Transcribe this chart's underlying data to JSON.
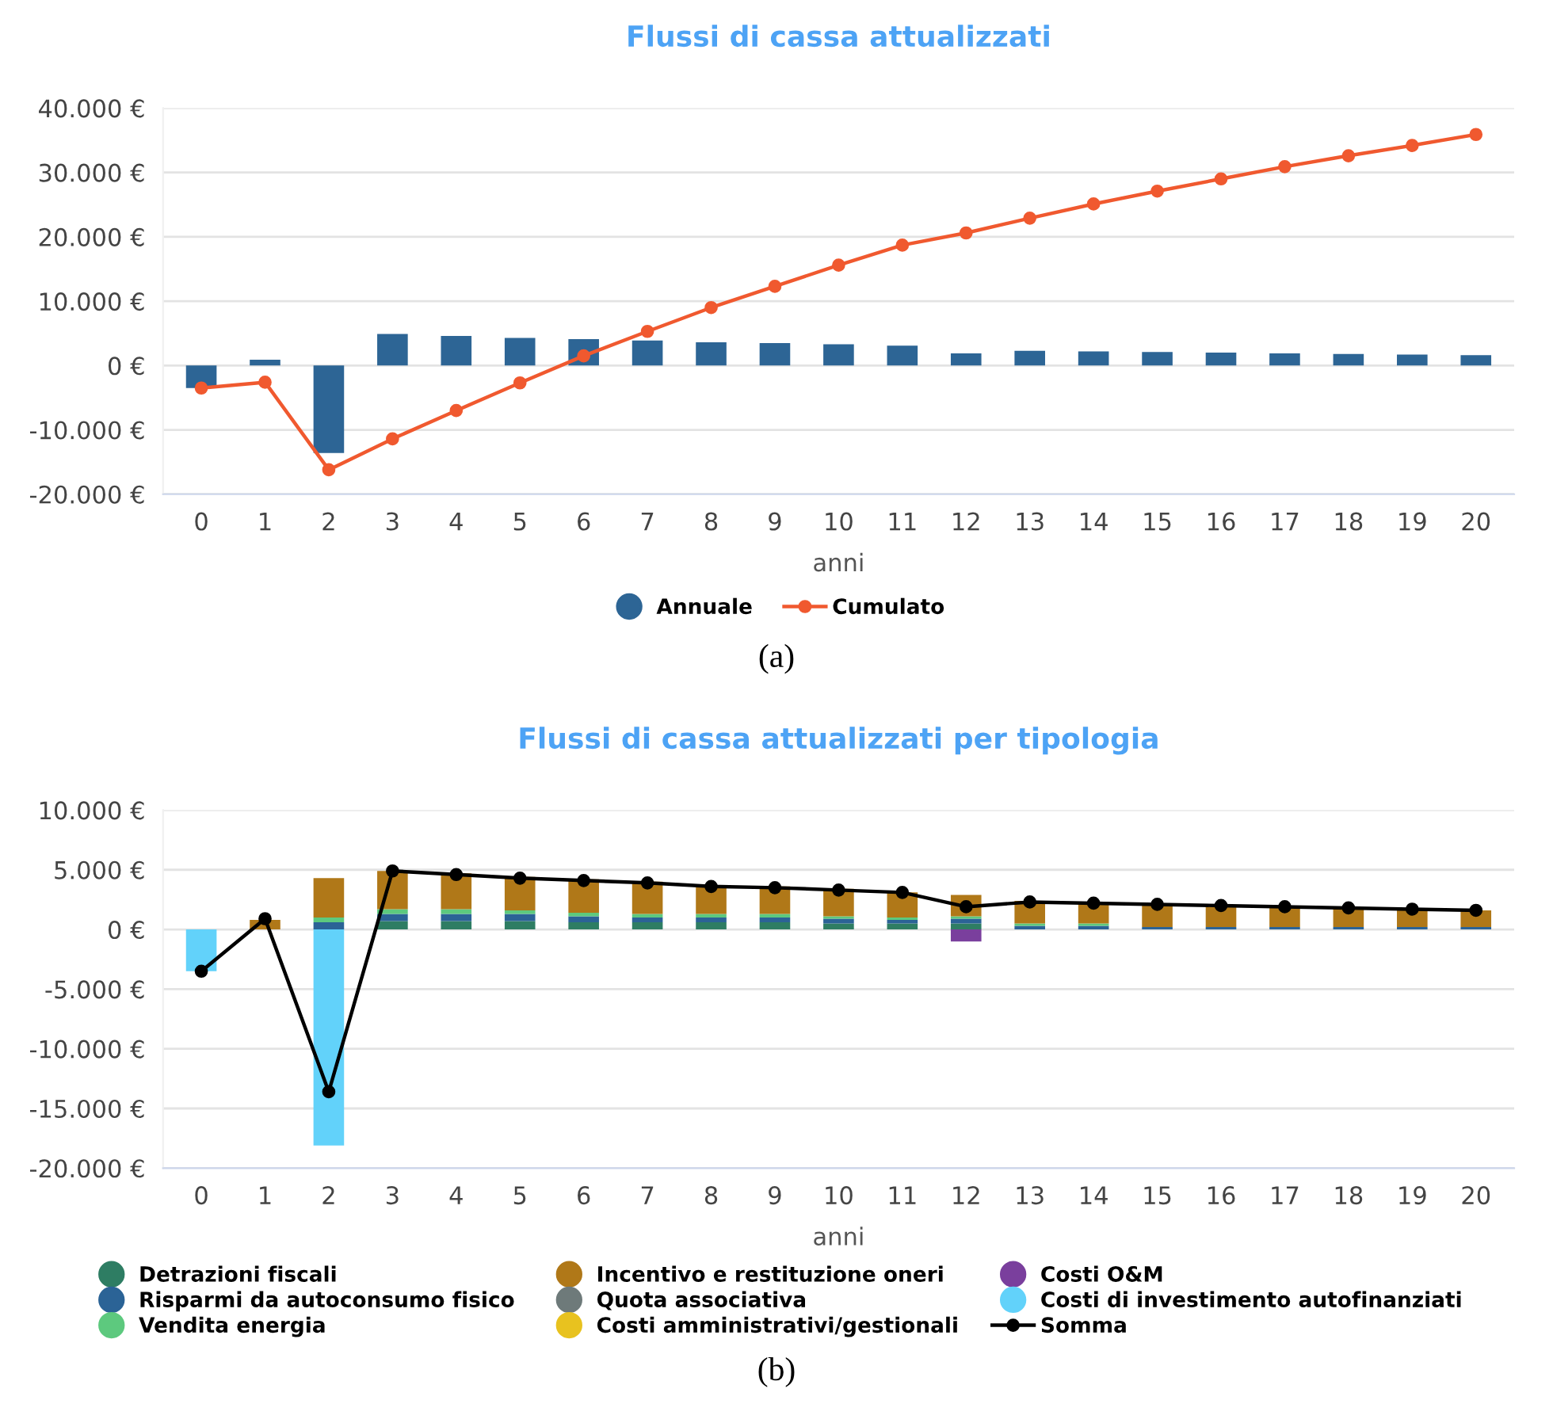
{
  "chart_data": [
    {
      "type": "bar",
      "title": "Flussi di cassa attualizzati",
      "xlabel": "anni",
      "categories": [
        "0",
        "1",
        "2",
        "3",
        "4",
        "5",
        "6",
        "7",
        "8",
        "9",
        "10",
        "11",
        "12",
        "13",
        "14",
        "15",
        "16",
        "17",
        "18",
        "19",
        "20"
      ],
      "series": [
        {
          "name": "Annuale",
          "type": "bar",
          "color": "#2d6595",
          "values": [
            -3500,
            900,
            -13600,
            4900,
            4600,
            4300,
            4100,
            3900,
            3600,
            3500,
            3300,
            3100,
            1900,
            2300,
            2200,
            2100,
            2000,
            1900,
            1800,
            1700,
            1600
          ]
        },
        {
          "name": "Cumulato",
          "type": "line",
          "color": "#f0592f",
          "marker": "circle",
          "values": [
            -3500,
            -2600,
            -16200,
            -11400,
            -7000,
            -2700,
            1500,
            5300,
            9000,
            12300,
            15600,
            18700,
            20600,
            22900,
            25100,
            27100,
            29000,
            30900,
            32600,
            34200,
            35900
          ]
        }
      ],
      "ylim": [
        -20000,
        40000
      ],
      "yticks": [
        {
          "value": -20000,
          "label": "-20.000 €"
        },
        {
          "value": -10000,
          "label": "-10.000 €"
        },
        {
          "value": 0,
          "label": "0 €"
        },
        {
          "value": 10000,
          "label": "10.000 €"
        },
        {
          "value": 20000,
          "label": "20.000 €"
        },
        {
          "value": 30000,
          "label": "30.000 €"
        },
        {
          "value": 40000,
          "label": "40.000 €"
        }
      ],
      "grid": "y",
      "legend": "bottom",
      "annotations": [
        "(a)"
      ]
    },
    {
      "type": "bar",
      "title": "Flussi di cassa attualizzati per tipologia",
      "xlabel": "anni",
      "stacked": true,
      "categories": [
        "0",
        "1",
        "2",
        "3",
        "4",
        "5",
        "6",
        "7",
        "8",
        "9",
        "10",
        "11",
        "12",
        "13",
        "14",
        "15",
        "16",
        "17",
        "18",
        "19",
        "20"
      ],
      "series": [
        {
          "name": "Detrazioni fiscali",
          "color": "#2e7d63",
          "values": [
            null,
            null,
            null,
            700,
            700,
            700,
            600,
            600,
            600,
            600,
            500,
            500,
            500,
            null,
            null,
            null,
            null,
            null,
            null,
            null,
            null
          ]
        },
        {
          "name": "Risparmi da autoconsumo fisico",
          "color": "#2b6396",
          "values": [
            null,
            null,
            600,
            600,
            600,
            600,
            500,
            400,
            400,
            400,
            400,
            300,
            400,
            300,
            300,
            200,
            200,
            200,
            200,
            200,
            200
          ]
        },
        {
          "name": "Vendita energia",
          "color": "#5dc97e",
          "values": [
            null,
            null,
            400,
            400,
            400,
            300,
            300,
            300,
            300,
            300,
            200,
            200,
            200,
            200,
            200,
            null,
            null,
            null,
            null,
            null,
            null
          ]
        },
        {
          "name": "Incentivo e restituzione oneri",
          "color": "#b07818",
          "values": [
            null,
            800,
            3300,
            3200,
            3000,
            2800,
            2800,
            2700,
            2400,
            2300,
            2300,
            2100,
            1800,
            1900,
            1800,
            1900,
            1800,
            1700,
            1600,
            1500,
            1400
          ]
        },
        {
          "name": "Quota associativa",
          "color": "#6e7a7a",
          "values": [
            null,
            null,
            null,
            null,
            null,
            null,
            null,
            null,
            null,
            null,
            null,
            null,
            null,
            null,
            null,
            null,
            null,
            null,
            null,
            null,
            null
          ]
        },
        {
          "name": "Costi amministrativi/gestionali",
          "color": "#e8c21f",
          "values": [
            null,
            null,
            null,
            null,
            null,
            null,
            null,
            null,
            null,
            null,
            null,
            null,
            null,
            null,
            null,
            null,
            null,
            null,
            null,
            null,
            null
          ]
        },
        {
          "name": "Costi O&M",
          "color": "#7a3f9d",
          "values": [
            null,
            null,
            null,
            null,
            null,
            null,
            null,
            null,
            null,
            null,
            null,
            null,
            -1000,
            null,
            null,
            null,
            null,
            null,
            null,
            null,
            null
          ]
        },
        {
          "name": "Costi di investimento autofinanziati",
          "color": "#62d2fa",
          "values": [
            -3500,
            null,
            -18100,
            null,
            null,
            null,
            null,
            null,
            null,
            null,
            null,
            null,
            null,
            null,
            null,
            null,
            null,
            null,
            null,
            null,
            null
          ]
        },
        {
          "name": "Somma",
          "type": "line",
          "color": "#000000",
          "marker": "circle",
          "values": [
            -3500,
            900,
            -13600,
            4900,
            4600,
            4300,
            4100,
            3900,
            3600,
            3500,
            3300,
            3100,
            1900,
            2300,
            2200,
            2100,
            2000,
            1900,
            1800,
            1700,
            1600
          ]
        }
      ],
      "ylim": [
        -20000,
        10000
      ],
      "yticks": [
        {
          "value": -20000,
          "label": "-20.000 €"
        },
        {
          "value": -15000,
          "label": "-15.000 €"
        },
        {
          "value": -10000,
          "label": "-10.000 €"
        },
        {
          "value": -5000,
          "label": "-5.000 €"
        },
        {
          "value": 0,
          "label": "0 €"
        },
        {
          "value": 5000,
          "label": "5.000 €"
        },
        {
          "value": 10000,
          "label": "10.000 €"
        }
      ],
      "grid": "y",
      "legend": "bottom",
      "annotations": [
        "(b)"
      ]
    }
  ]
}
